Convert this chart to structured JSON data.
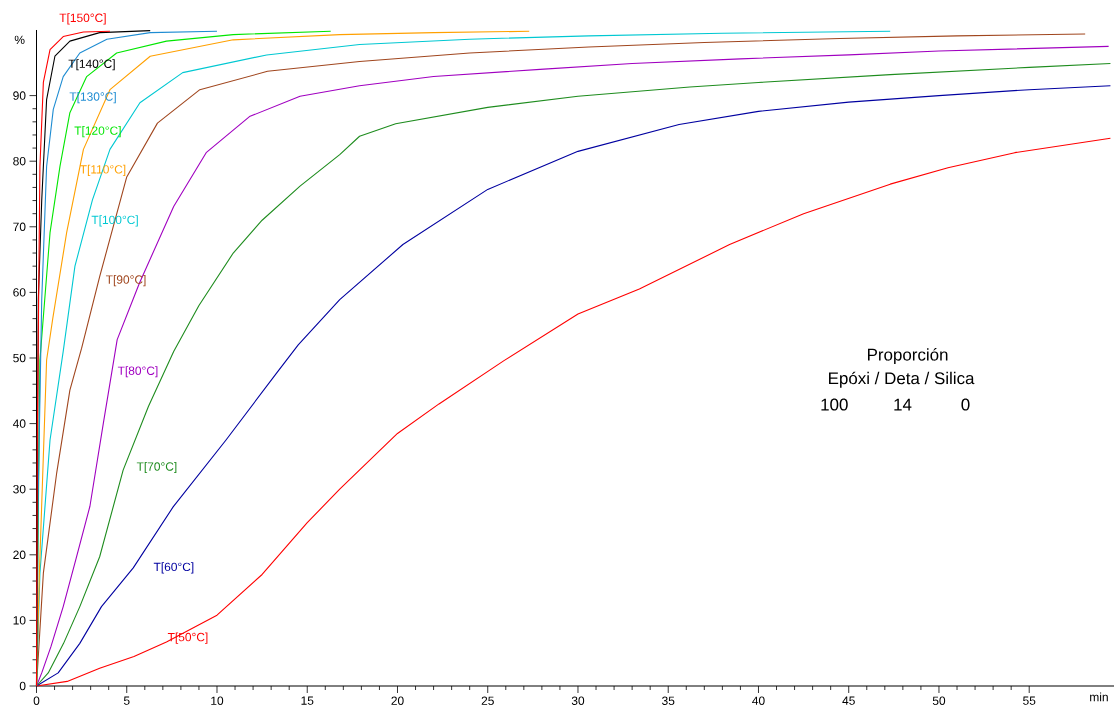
{
  "chart_data": {
    "type": "line",
    "xlabel": "min",
    "ylabel": "%",
    "xlim": [
      0,
      59.7
    ],
    "ylim": [
      0,
      100
    ],
    "xticks": [
      0,
      5,
      10,
      15,
      20,
      25,
      30,
      35,
      40,
      45,
      50,
      55
    ],
    "yticks": [
      0,
      10,
      20,
      30,
      40,
      50,
      60,
      70,
      80,
      90
    ],
    "grid": false,
    "legend": false,
    "marker": "none",
    "line_style": "solid",
    "annotations": [
      "Proporción",
      "Epóxi / Deta / Silica",
      "100",
      "14",
      "0"
    ],
    "series": [
      {
        "name": "T[50°C]",
        "color": "#ff0000",
        "x": [
          0,
          1.7,
          3.5,
          5.4,
          7.2,
          10,
          12.5,
          15,
          16.8,
          20,
          22.3,
          25.9,
          30,
          33.4,
          38.4,
          42.5,
          47.3,
          50.5,
          54.2,
          59.5
        ],
        "values": [
          0,
          0.7,
          2.7,
          4.5,
          6.7,
          10.8,
          17,
          24.9,
          30,
          38.5,
          43,
          49.6,
          56.7,
          60.5,
          67.3,
          72,
          76.5,
          79,
          81.3,
          83.5
        ]
      },
      {
        "name": "T[60°C]",
        "color": "#0000a0",
        "x": [
          0,
          1.2,
          2.4,
          3.6,
          5.36,
          7.57,
          10.5,
          13.3,
          14.5,
          16.8,
          20.3,
          25,
          30,
          35.6,
          40,
          45,
          50,
          55,
          59.5
        ],
        "values": [
          0,
          2,
          6.5,
          12.1,
          18,
          27.3,
          37.5,
          47.7,
          52,
          58.9,
          67.3,
          75.7,
          81.5,
          85.6,
          87.6,
          89,
          90,
          90.9,
          91.5
        ]
      },
      {
        "name": "T[70°C]",
        "color": "#1e8c1e",
        "x": [
          0,
          0.65,
          1.5,
          2.4,
          3.5,
          4.8,
          6.2,
          7.6,
          9,
          10.9,
          12.5,
          14.6,
          16.8,
          17.9,
          19.9,
          25,
          30,
          36.2,
          40,
          47.3,
          55,
          59.5
        ],
        "values": [
          0,
          2,
          6.5,
          12.1,
          19.7,
          32.9,
          42.6,
          51,
          58,
          66,
          71,
          76.2,
          81,
          83.8,
          85.7,
          88.2,
          89.9,
          91.3,
          92,
          93.2,
          94.3,
          94.9
        ]
      },
      {
        "name": "T[80°C]",
        "color": "#a000c0",
        "x": [
          0,
          0.29,
          0.8,
          1.48,
          2.2,
          2.96,
          3.7,
          4.47,
          5.7,
          7.6,
          9.4,
          11.8,
          14.6,
          17.9,
          22,
          27.9,
          33,
          39,
          45,
          50,
          59.4
        ],
        "values": [
          0,
          2,
          6,
          12.1,
          19.5,
          27.4,
          40,
          52.8,
          61.4,
          73.1,
          81.3,
          86.8,
          89.9,
          91.5,
          92.9,
          94,
          94.9,
          95.6,
          96.2,
          96.8,
          97.5
        ]
      },
      {
        "name": "T[90°C]",
        "color": "#a0461e",
        "x": [
          0,
          0.38,
          1.12,
          1.85,
          2.5,
          3.5,
          5,
          6.7,
          9.05,
          12.8,
          17.9,
          24,
          30.6,
          37,
          44.5,
          51,
          58.1
        ],
        "values": [
          0,
          17.2,
          32.5,
          45.1,
          51.5,
          62.4,
          77.6,
          85.8,
          90.9,
          93.7,
          95.2,
          96.5,
          97.4,
          98.1,
          98.7,
          99.1,
          99.4
        ]
      },
      {
        "name": "T[100°C]",
        "color": "#00c8d2",
        "x": [
          0,
          0.19,
          0.75,
          1.48,
          2.13,
          3.1,
          4.07,
          5.73,
          8.1,
          12.75,
          17.9,
          24,
          30.6,
          38,
          47.3
        ],
        "values": [
          0,
          17.2,
          37.5,
          51,
          64,
          74.1,
          81.8,
          88.9,
          93.5,
          96.2,
          97.8,
          98.6,
          99.1,
          99.5,
          99.8
        ]
      },
      {
        "name": "T[110°C]",
        "color": "#ffa000",
        "x": [
          0,
          0.16,
          0.56,
          0.9,
          1.67,
          2.6,
          4.07,
          6.3,
          10.9,
          16.8,
          22,
          27.3
        ],
        "values": [
          0,
          17.2,
          49.7,
          56,
          69.1,
          81.8,
          90.9,
          96,
          98.5,
          99.3,
          99.6,
          99.8
        ]
      },
      {
        "name": "T[120°C]",
        "color": "#00e600",
        "x": [
          0,
          0.1,
          0.19,
          0.75,
          1.3,
          1.85,
          2.78,
          4.44,
          7.2,
          10.9,
          16.3
        ],
        "values": [
          0,
          null,
          49.7,
          69.1,
          79.2,
          87.4,
          92.9,
          96.5,
          98.3,
          99.3,
          99.8
        ]
      },
      {
        "name": "T[130°C]",
        "color": "#1e8cd2",
        "x": [
          0,
          0.1,
          0.29,
          0.56,
          0.93,
          1.48,
          2.4,
          3.9,
          6.3,
          10
        ],
        "values": [
          0,
          30,
          58.9,
          79.2,
          87.9,
          92.9,
          96.5,
          98.6,
          99.6,
          99.8
        ]
      },
      {
        "name": "T[140°C]",
        "color": "#000000",
        "x": [
          0,
          0.05,
          0.1,
          0.29,
          0.56,
          1.02,
          1.85,
          3.5,
          6.3
        ],
        "values": [
          0,
          30,
          58.9,
          74.1,
          89.4,
          96,
          98.3,
          99.6,
          99.9
        ]
      },
      {
        "name": "T[150°C]",
        "color": "#ff0000",
        "x": [
          0,
          0.05,
          0.19,
          0.38,
          0.75,
          1.48,
          2.6,
          4.07
        ],
        "values": [
          0,
          40,
          79.2,
          92,
          97,
          99,
          99.7,
          99.8
        ]
      }
    ]
  }
}
